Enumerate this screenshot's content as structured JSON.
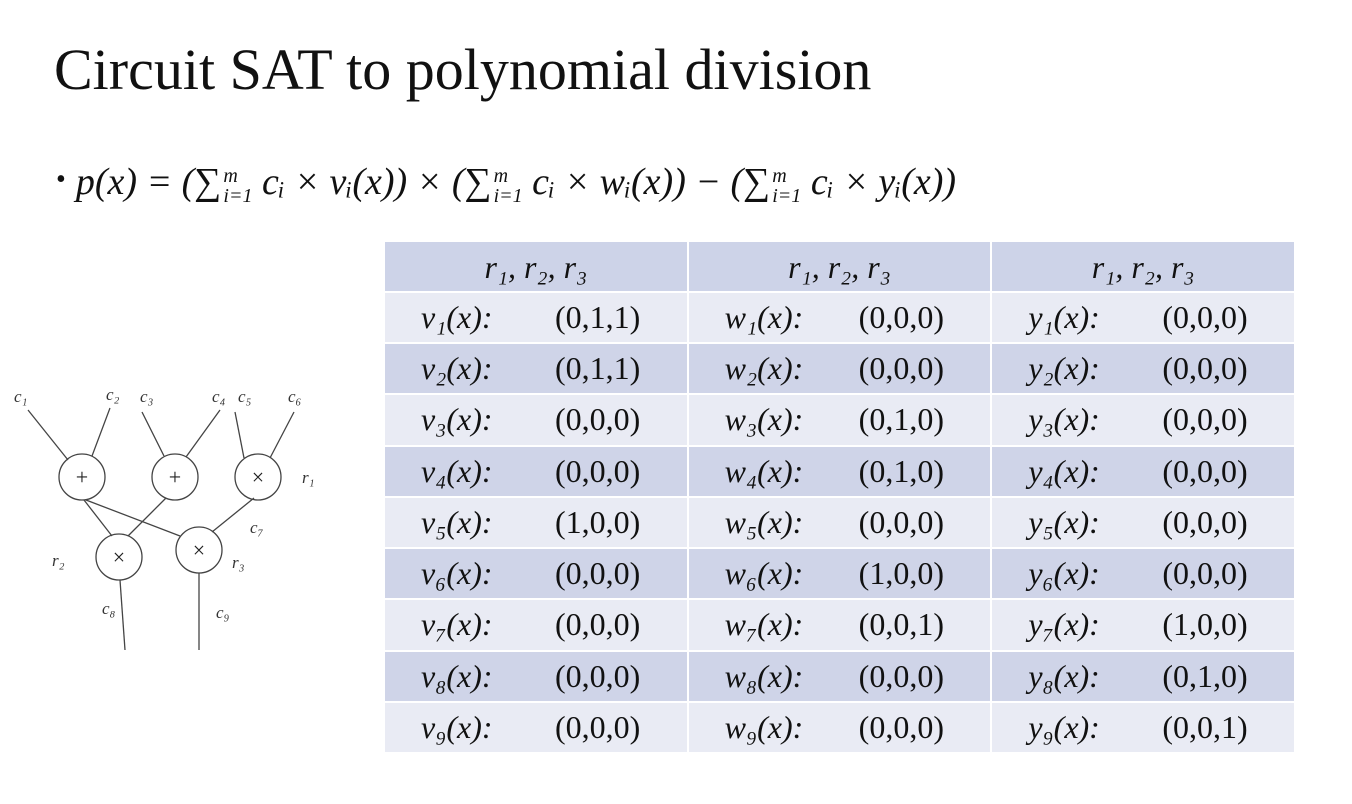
{
  "title": "Circuit SAT to polynomial division",
  "bullet": "•",
  "formula": [
    {
      "text": "p(x) = ("
    },
    {
      "symbol": "∑",
      "sup": "m",
      "sub": "i=1"
    },
    {
      "text": " cᵢ × vᵢ(x)) × ("
    },
    {
      "symbol": "∑",
      "sup": "m",
      "sub": "i=1"
    },
    {
      "text": " cᵢ × wᵢ(x)) − ("
    },
    {
      "symbol": "∑",
      "sup": "m",
      "sub": "i=1"
    },
    {
      "text": " cᵢ × yᵢ(x))"
    }
  ],
  "circuit": {
    "gates": [
      "+",
      "+",
      "×",
      "×",
      "×"
    ],
    "labels": [
      "c₁",
      "c₂",
      "c₃",
      "c₄",
      "c₅",
      "c₆",
      "r₁",
      "c₇",
      "r₂",
      "r₃",
      "c₈",
      "c₉"
    ]
  },
  "table": {
    "header": [
      "r₁, r₂, r₃",
      "r₁, r₂, r₃",
      "r₁, r₂, r₃"
    ],
    "rows": [
      [
        {
          "label": "v₁(x):",
          "value": "(0,1,1)"
        },
        {
          "label": "w₁(x):",
          "value": "(0,0,0)"
        },
        {
          "label": "y₁(x):",
          "value": "(0,0,0)"
        }
      ],
      [
        {
          "label": "v₂(x):",
          "value": "(0,1,1)"
        },
        {
          "label": "w₂(x):",
          "value": "(0,0,0)"
        },
        {
          "label": "y₂(x):",
          "value": "(0,0,0)"
        }
      ],
      [
        {
          "label": "v₃(x):",
          "value": "(0,0,0)"
        },
        {
          "label": "w₃(x):",
          "value": "(0,1,0)"
        },
        {
          "label": "y₃(x):",
          "value": "(0,0,0)"
        }
      ],
      [
        {
          "label": "v₄(x):",
          "value": "(0,0,0)"
        },
        {
          "label": "w₄(x):",
          "value": "(0,1,0)"
        },
        {
          "label": "y₄(x):",
          "value": "(0,0,0)"
        }
      ],
      [
        {
          "label": "v₅(x):",
          "value": "(1,0,0)"
        },
        {
          "label": "w₅(x):",
          "value": "(0,0,0)"
        },
        {
          "label": "y₅(x):",
          "value": "(0,0,0)"
        }
      ],
      [
        {
          "label": "v₆(x):",
          "value": "(0,0,0)"
        },
        {
          "label": "w₆(x):",
          "value": "(1,0,0)"
        },
        {
          "label": "y₆(x):",
          "value": "(0,0,0)"
        }
      ],
      [
        {
          "label": "v₇(x):",
          "value": "(0,0,0)"
        },
        {
          "label": "w₇(x):",
          "value": "(0,0,1)"
        },
        {
          "label": "y₇(x):",
          "value": "(1,0,0)"
        }
      ],
      [
        {
          "label": "v₈(x):",
          "value": "(0,0,0)"
        },
        {
          "label": "w₈(x):",
          "value": "(0,0,0)"
        },
        {
          "label": "y₈(x):",
          "value": "(0,1,0)"
        }
      ],
      [
        {
          "label": "v₉(x):",
          "value": "(0,0,0)"
        },
        {
          "label": "w₉(x):",
          "value": "(0,0,0)"
        },
        {
          "label": "y₉(x):",
          "value": "(0,0,1)"
        }
      ]
    ]
  }
}
